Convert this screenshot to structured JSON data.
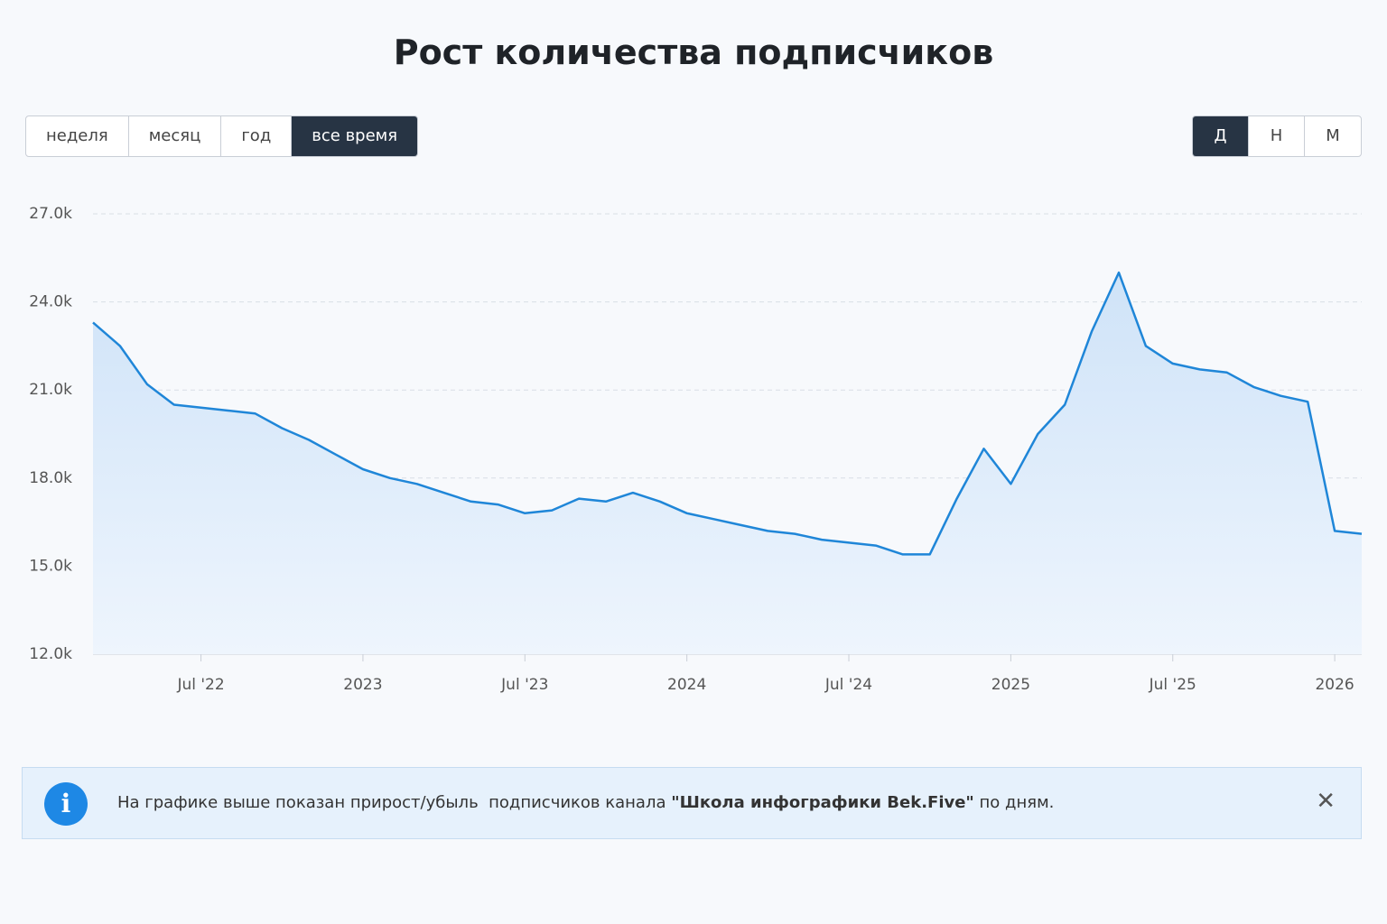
{
  "chart_data": {
    "type": "area",
    "title": "Рост количества подписчиков",
    "color": "#1f86d8",
    "x": [
      "2022-03",
      "2022-04",
      "2022-05",
      "2022-06",
      "2022-07",
      "2022-08",
      "2022-09",
      "2022-10",
      "2022-11",
      "2022-12",
      "2023-01",
      "2023-02",
      "2023-03",
      "2023-04",
      "2023-05",
      "2023-06",
      "2023-07",
      "2023-08",
      "2023-09",
      "2023-10",
      "2023-11",
      "2023-12",
      "2024-01",
      "2024-02",
      "2024-03",
      "2024-04",
      "2024-05",
      "2024-06",
      "2024-07",
      "2024-08",
      "2024-09",
      "2024-10",
      "2024-11",
      "2024-12",
      "2025-01",
      "2025-02",
      "2025-03",
      "2025-04",
      "2025-05",
      "2025-06",
      "2025-07",
      "2025-08",
      "2025-09",
      "2025-10",
      "2025-11",
      "2025-12",
      "2026-01",
      "2026-02"
    ],
    "values": [
      23300,
      22500,
      21200,
      20500,
      20400,
      20300,
      20200,
      19700,
      19300,
      18800,
      18300,
      18000,
      17800,
      17500,
      17200,
      17100,
      16800,
      16900,
      17300,
      17200,
      17500,
      17200,
      16800,
      16600,
      16400,
      16200,
      16100,
      15900,
      15800,
      15700,
      15400,
      15400,
      17300,
      19000,
      17800,
      19500,
      20500,
      23000,
      25000,
      22500,
      21900,
      21700,
      21600,
      21100,
      20800,
      20600,
      16200,
      16100
    ],
    "xlim": [
      "2022-03",
      "2026-02"
    ],
    "xticks": [
      {
        "value": "2022-07",
        "label": "Jul '22"
      },
      {
        "value": "2023-01",
        "label": "2023"
      },
      {
        "value": "2023-07",
        "label": "Jul '23"
      },
      {
        "value": "2024-01",
        "label": "2024"
      },
      {
        "value": "2024-07",
        "label": "Jul '24"
      },
      {
        "value": "2025-01",
        "label": "2025"
      },
      {
        "value": "2025-07",
        "label": "Jul '25"
      },
      {
        "value": "2026-01",
        "label": "2026"
      }
    ],
    "ylim": [
      12000,
      27000
    ],
    "yticks": [
      {
        "value": 12000,
        "label": "12.0k"
      },
      {
        "value": 15000,
        "label": "15.0k"
      },
      {
        "value": 18000,
        "label": "18.0k"
      },
      {
        "value": 21000,
        "label": "21.0k"
      },
      {
        "value": 24000,
        "label": "24.0k"
      },
      {
        "value": 27000,
        "label": "27.0k"
      }
    ],
    "grid": true
  },
  "period_buttons": [
    "неделя",
    "месяц",
    "год",
    "все время"
  ],
  "selected_period": 3,
  "granularity_buttons": [
    "Д",
    "Н",
    "М"
  ],
  "selected_granularity": 0,
  "info": {
    "text_before": "На графике выше показан прирост/убыль  подписчиков канала ",
    "text_bold": "\"Школа инфографики Bek.Five\"",
    "text_after": " по дням."
  }
}
